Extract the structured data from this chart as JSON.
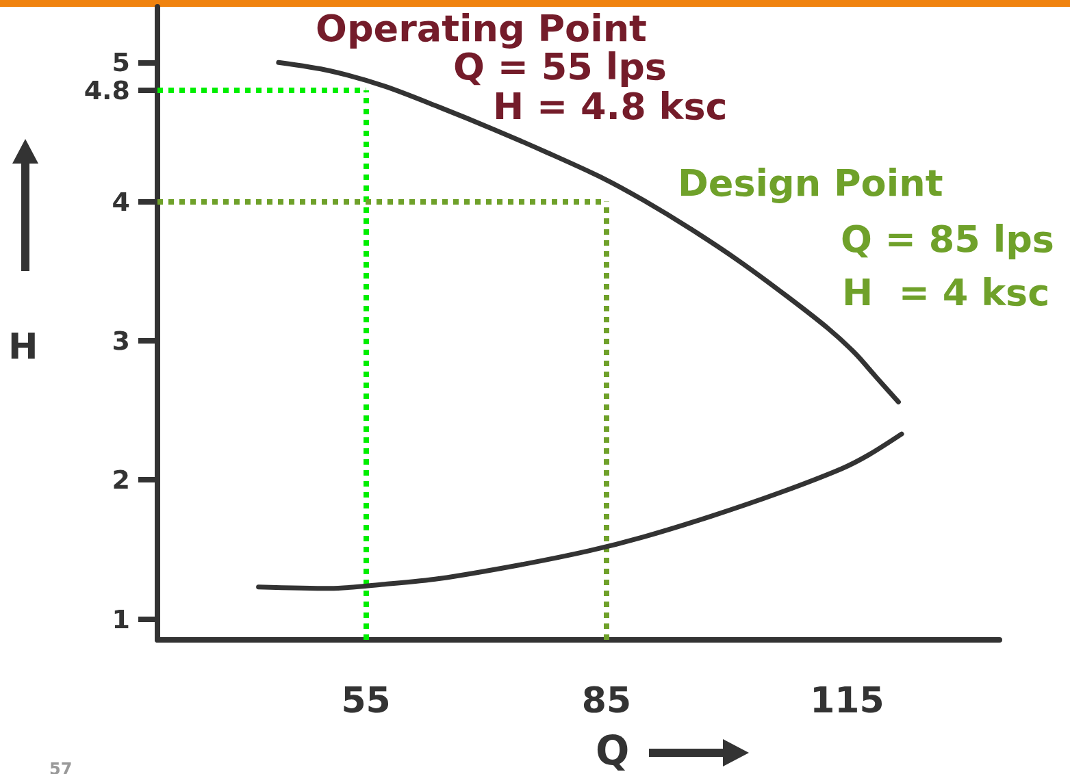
{
  "chart_data": {
    "type": "line",
    "xlabel": "Q",
    "ylabel": "H",
    "xlim": [
      29,
      134
    ],
    "ylim": [
      0.85,
      5.4
    ],
    "xticks": [
      55,
      85,
      115
    ],
    "yticks": [
      1,
      2,
      3,
      4,
      4.8,
      5
    ],
    "grid": false,
    "marker": "none",
    "line_style": "solid",
    "series": [
      {
        "color": "#333333",
        "x": [
          44.1,
          50.5,
          57.3,
          64.1,
          70.9,
          77.7,
          84.5,
          89.6,
          95.6,
          101.6,
          107.5,
          112.6,
          116.0,
          118.6,
          121.4
        ],
        "values": [
          5.0,
          4.94,
          4.83,
          4.68,
          4.52,
          4.35,
          4.17,
          4.01,
          3.8,
          3.57,
          3.32,
          3.09,
          2.91,
          2.74,
          2.56
        ]
      },
      {
        "color": "#333333",
        "x": [
          41.6,
          50.5,
          57.3,
          64.1,
          74.3,
          82.8,
          89.6,
          98.1,
          106.7,
          114.3,
          117.7,
          121.8
        ],
        "values": [
          1.23,
          1.22,
          1.25,
          1.29,
          1.39,
          1.49,
          1.59,
          1.74,
          1.91,
          2.08,
          2.18,
          2.33
        ]
      }
    ],
    "ref_lines": [
      {
        "axis": "x",
        "value": 55,
        "color": "#00ee00",
        "line_style": "dotted"
      },
      {
        "axis": "y",
        "value": 4.8,
        "color": "#00ee00",
        "line_style": "dotted"
      },
      {
        "axis": "x",
        "value": 85,
        "color": "#6fa12a",
        "line_style": "dotted"
      },
      {
        "axis": "y",
        "value": 4,
        "color": "#6fa12a",
        "line_style": "dotted"
      }
    ],
    "annotations": [
      "Operating Point",
      "Q = 55 lps",
      "H = 4.8 ksc",
      "Design Point",
      "Q = 85 lps",
      "H  = 4 ksc",
      "57"
    ]
  }
}
